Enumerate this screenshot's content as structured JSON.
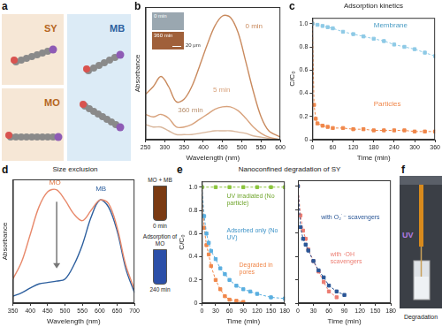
{
  "chart_data": [
    {
      "panel": "b",
      "type": "line",
      "x_label": "Wavelength (nm)",
      "y_label": "Absorbance",
      "x": [
        250,
        270,
        290,
        310,
        330,
        350,
        370,
        390,
        410,
        430,
        450,
        470,
        490,
        510,
        530,
        550,
        570,
        600
      ],
      "series": [
        {
          "name": "0 min",
          "color": "#c98a5e",
          "marker": "none",
          "line_style": "solid",
          "values": [
            0.36,
            0.42,
            0.5,
            0.42,
            0.3,
            0.32,
            0.42,
            0.58,
            0.75,
            0.9,
            0.98,
            0.97,
            0.85,
            0.62,
            0.38,
            0.18,
            0.07,
            0.02
          ]
        },
        {
          "name": "5 min",
          "color": "#d8a27c",
          "marker": "none",
          "line_style": "solid",
          "values": [
            0.2,
            0.18,
            0.2,
            0.17,
            0.1,
            0.1,
            0.12,
            0.16,
            0.2,
            0.24,
            0.26,
            0.26,
            0.23,
            0.17,
            0.1,
            0.05,
            0.02,
            0.0
          ]
        },
        {
          "name": "360 min",
          "color": "#d9b79c",
          "marker": "none",
          "line_style": "solid",
          "values": [
            0.12,
            0.1,
            0.1,
            0.07,
            0.04,
            0.04,
            0.04,
            0.05,
            0.06,
            0.07,
            0.07,
            0.07,
            0.06,
            0.05,
            0.03,
            0.02,
            0.01,
            0.0
          ]
        }
      ],
      "xlim": [
        250,
        600
      ],
      "xticks": [
        250,
        300,
        350,
        400,
        450,
        500,
        550,
        600
      ],
      "ylim": [
        0,
        1.05
      ],
      "tick_labels": "x",
      "grid": false,
      "inset_labels": [
        "0 min",
        "360 min"
      ],
      "scale_bar": "20 μm"
    },
    {
      "panel": "c",
      "type": "line",
      "title": "Adsorption kinetics",
      "x_label": "Time (min)",
      "y_label": "C/C₀",
      "series": [
        {
          "name": "Membrane",
          "color": "#8ecae6",
          "marker": "square",
          "line_style": "dashed",
          "x": [
            0,
            15,
            30,
            45,
            60,
            90,
            120,
            150,
            180,
            210,
            240,
            270,
            300,
            330,
            360
          ],
          "values": [
            1.0,
            0.99,
            0.98,
            0.97,
            0.96,
            0.93,
            0.91,
            0.89,
            0.87,
            0.85,
            0.82,
            0.8,
            0.78,
            0.75,
            0.72
          ]
        },
        {
          "name": "Particles",
          "color": "#f0874a",
          "marker": "square",
          "line_style": "dashed",
          "x": [
            0,
            5,
            10,
            15,
            30,
            45,
            60,
            90,
            120,
            150,
            180,
            210,
            240,
            270,
            300,
            330,
            360
          ],
          "values": [
            1.0,
            0.3,
            0.18,
            0.14,
            0.12,
            0.11,
            0.1,
            0.1,
            0.09,
            0.09,
            0.08,
            0.08,
            0.08,
            0.08,
            0.07,
            0.07,
            0.07
          ]
        }
      ],
      "xlim": [
        0,
        360
      ],
      "xticks": [
        0,
        60,
        120,
        180,
        240,
        300,
        360
      ],
      "ylim": [
        0,
        1.05
      ],
      "yticks": [
        0,
        0.2,
        0.4,
        0.6,
        0.8,
        {
          "value": 1,
          "label": "1.0"
        }
      ],
      "grid": false
    },
    {
      "panel": "d",
      "type": "line",
      "title": "Size exclusion",
      "x_label": "Wavelength (nm)",
      "y_label": "Absorbance",
      "x": [
        350,
        375,
        400,
        425,
        450,
        475,
        500,
        525,
        550,
        575,
        600,
        625,
        650,
        675,
        700
      ],
      "series": [
        {
          "name": "0 min",
          "color": "#e8896b",
          "marker": "none",
          "line_style": "solid",
          "values": [
            0.35,
            0.6,
            1.0,
            1.4,
            1.62,
            1.65,
            1.5,
            1.3,
            1.2,
            1.35,
            1.5,
            1.45,
            1.1,
            0.55,
            0.2
          ]
        },
        {
          "name": "240 min",
          "color": "#2d5f9e",
          "marker": "none",
          "line_style": "solid",
          "values": [
            0.1,
            0.15,
            0.22,
            0.28,
            0.3,
            0.32,
            0.35,
            0.55,
            0.85,
            1.25,
            1.5,
            1.4,
            1.05,
            0.5,
            0.15
          ]
        }
      ],
      "xlim": [
        350,
        700
      ],
      "xticks": [
        350,
        400,
        450,
        500,
        550,
        600,
        650,
        700
      ],
      "ylim": [
        0,
        1.8
      ],
      "tick_labels": "x",
      "grid": false,
      "annotations": [
        "MO",
        "MB"
      ],
      "photo_labels": [
        "MO + MB",
        "Adsorption of MO"
      ]
    },
    {
      "panel": "e",
      "type": "line",
      "title": "Nanoconfined degradation of SY",
      "x_label": "Time (min)",
      "y_label": "C/C₀",
      "series": [
        {
          "name": "UV irradiated (No particle)",
          "color": "#8cc63f",
          "marker": "square",
          "line_style": "dashed",
          "x": [
            0,
            30,
            60,
            90,
            120,
            150,
            180
          ],
          "values": [
            1.0,
            1.0,
            1.0,
            1.0,
            1.0,
            1.0,
            1.0
          ]
        },
        {
          "name": "Adsorbed only (No UV)",
          "color": "#5aafe0",
          "marker": "square",
          "line_style": "dashed",
          "x": [
            0,
            5,
            10,
            15,
            20,
            30,
            40,
            50,
            60,
            75,
            90,
            105,
            120,
            150,
            180
          ],
          "values": [
            1.0,
            0.75,
            0.6,
            0.52,
            0.45,
            0.38,
            0.3,
            0.25,
            0.2,
            0.15,
            0.12,
            0.1,
            0.08,
            0.05,
            0.04
          ]
        },
        {
          "name": "Degraded in pores",
          "color": "#f0874a",
          "marker": "square",
          "line_style": "dashed",
          "x": [
            0,
            5,
            10,
            15,
            20,
            30,
            40,
            50,
            60,
            75,
            90
          ],
          "values": [
            1.0,
            0.65,
            0.5,
            0.42,
            0.32,
            0.2,
            0.12,
            0.06,
            0.03,
            0.02,
            0.01
          ]
        }
      ],
      "xlim": [
        0,
        180
      ],
      "xticks": [
        0,
        30,
        60,
        90,
        120,
        150,
        180
      ],
      "ylim": [
        0,
        1.05
      ],
      "yticks": [
        0,
        0.2,
        0.4,
        0.6,
        0.8,
        {
          "value": 1,
          "label": "1.0"
        }
      ],
      "grid": false
    },
    {
      "type": "line",
      "x_label": "Time (min)",
      "series": [
        {
          "name": "with O₂˙⁻ scavengers",
          "color": "#2b5797",
          "marker": "square",
          "line_style": "dashed",
          "x": [
            0,
            5,
            10,
            15,
            20,
            30,
            40,
            50,
            60,
            75,
            90
          ],
          "values": [
            1.0,
            0.65,
            0.55,
            0.5,
            0.45,
            0.36,
            0.28,
            0.22,
            0.15,
            0.1,
            0.07
          ]
        },
        {
          "name": "with ·OH scavengers",
          "color": "#ec7d72",
          "marker": "square",
          "line_style": "dashed",
          "x": [
            0,
            5,
            10,
            15,
            20,
            30,
            40,
            50,
            60,
            75
          ],
          "values": [
            1.0,
            0.75,
            0.62,
            0.55,
            0.46,
            0.36,
            0.27,
            0.18,
            0.1,
            0.05
          ]
        }
      ],
      "xlim": [
        0,
        180
      ],
      "xticks": [
        0,
        30,
        60,
        90,
        120,
        150,
        180
      ],
      "ylim": [
        0,
        1.05
      ],
      "yticks": [
        0,
        0.2,
        0.4,
        0.6,
        0.8,
        {
          "value": 1,
          "label": "1.0"
        }
      ],
      "tick_labels": "x",
      "grid": false
    }
  ],
  "panel_a": {
    "panel": "a",
    "molecules": [
      "SY",
      "MO",
      "MB"
    ]
  },
  "panel_f": {
    "panel": "f",
    "light": "UV",
    "caption": "Degradation"
  }
}
